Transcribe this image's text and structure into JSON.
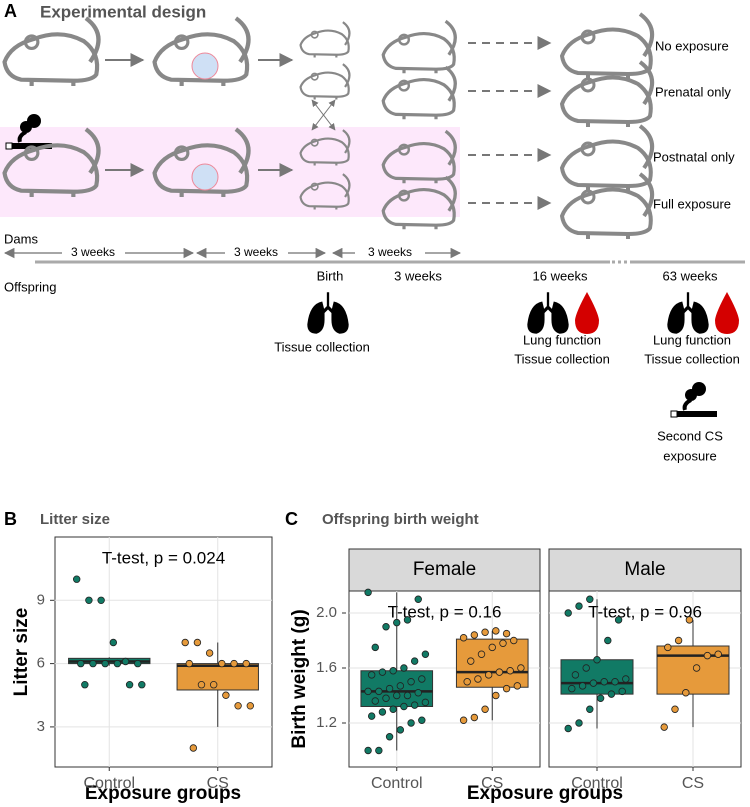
{
  "panel_a": {
    "label": "A",
    "title": "Experimental design",
    "groups": [
      "No exposure",
      "Prenatal only",
      "Postnatal only",
      "Full exposure"
    ],
    "dams": "Dams",
    "offspring": "Offspring",
    "intervals": [
      "3 weeks",
      "3 weeks",
      "3 weeks"
    ],
    "milestones": [
      {
        "time": "Birth",
        "actions": [
          "Tissue collection"
        ]
      },
      {
        "time": "3 weeks",
        "actions": []
      },
      {
        "time": "16 weeks",
        "actions": [
          "Lung function",
          "Tissue collection"
        ]
      },
      {
        "time": "63 weeks",
        "actions": [
          "Lung function",
          "Tissue collection"
        ]
      }
    ],
    "second_exposure": [
      "Second CS",
      "exposure"
    ]
  },
  "chart_data": [
    {
      "type": "box",
      "label": "B",
      "title": "Litter size",
      "ylabel": "Litter size",
      "xlabel": "Exposure groups",
      "categories": [
        "Control",
        "CS"
      ],
      "colors": [
        "#117a65",
        "#e69a3b"
      ],
      "ylim": [
        1.1,
        12.0
      ],
      "yticks": [
        3,
        6,
        9
      ],
      "grid": true,
      "facets": [
        {
          "annotation": "T-test, p = 0.024",
          "groups": [
            {
              "low": 5.9,
              "q1": 6.0,
              "median": 6.1,
              "q3": 6.25,
              "high": 6.3,
              "points": [
                10,
                9,
                9,
                7,
                6.1,
                6,
                6,
                6,
                6,
                6,
                5,
                5,
                5
              ]
            },
            {
              "low": 3,
              "q1": 4.75,
              "median": 5.9,
              "q3": 6.0,
              "high": 7,
              "points": [
                7,
                7,
                6.5,
                6,
                6,
                6,
                6,
                5,
                5,
                4.5,
                4,
                4,
                2
              ]
            }
          ]
        }
      ]
    },
    {
      "type": "box",
      "label": "C",
      "title": "Offspring birth weight",
      "ylabel": "Birth weight (g)",
      "xlabel": "Exposure groups",
      "categories": [
        "Control",
        "CS"
      ],
      "colors": [
        "#117a65",
        "#e69a3b"
      ],
      "ylim": [
        0.88,
        2.16
      ],
      "yticks": [
        {
          "value": 1.2,
          "label": "1.2"
        },
        {
          "value": 1.6,
          "label": "1.6"
        },
        {
          "value": 2.0,
          "label": "2.0"
        }
      ],
      "grid": true,
      "facets": [
        {
          "label": "Female",
          "annotation": "T-test, p = 0.16",
          "groups": [
            {
              "low": 1.0,
              "q1": 1.32,
              "median": 1.43,
              "q3": 1.58,
              "high": 2.15,
              "points": [
                1.0,
                1.0,
                1.1,
                1.15,
                1.2,
                1.22,
                1.25,
                1.28,
                1.3,
                1.32,
                1.33,
                1.35,
                1.36,
                1.38,
                1.4,
                1.4,
                1.42,
                1.43,
                1.43,
                1.45,
                1.47,
                1.5,
                1.52,
                1.55,
                1.57,
                1.58,
                1.6,
                1.65,
                1.7,
                1.75,
                1.9,
                1.93,
                1.95,
                2.1,
                2.15
              ]
            },
            {
              "low": 1.22,
              "q1": 1.46,
              "median": 1.57,
              "q3": 1.81,
              "high": 1.87,
              "points": [
                1.22,
                1.24,
                1.3,
                1.4,
                1.45,
                1.47,
                1.5,
                1.52,
                1.55,
                1.57,
                1.58,
                1.6,
                1.65,
                1.7,
                1.75,
                1.78,
                1.8,
                1.82,
                1.84,
                1.86,
                1.87,
                1.85
              ]
            }
          ]
        },
        {
          "label": "Male",
          "annotation": "T-test, p = 0.96",
          "groups": [
            {
              "low": 1.16,
              "q1": 1.41,
              "median": 1.49,
              "q3": 1.66,
              "high": 2.1,
              "points": [
                1.16,
                1.2,
                1.3,
                1.38,
                1.41,
                1.43,
                1.45,
                1.47,
                1.49,
                1.5,
                1.5,
                1.52,
                1.55,
                1.6,
                1.66,
                1.8,
                1.95,
                2.0,
                2.05,
                2.1
              ]
            },
            {
              "low": 1.17,
              "q1": 1.41,
              "median": 1.69,
              "q3": 1.76,
              "high": 1.95,
              "points": [
                1.17,
                1.3,
                1.42,
                1.6,
                1.69,
                1.7,
                1.75,
                1.8,
                1.95
              ]
            }
          ]
        }
      ]
    }
  ]
}
